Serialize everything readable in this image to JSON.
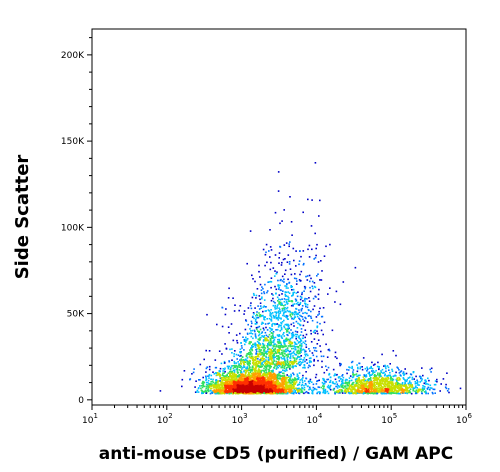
{
  "chart_data": {
    "type": "scatter",
    "subtype": "flow-cytometry-density-dot-plot",
    "xlabel": "anti-mouse CD5 (purified) / GAM APC",
    "ylabel": "Side Scatter",
    "x_scale": "log",
    "y_scale": "linear",
    "xlim": [
      10,
      1000000
    ],
    "ylim": [
      -3000,
      215000
    ],
    "x_ticks": [
      {
        "value": 10,
        "base": "10",
        "exp": "1"
      },
      {
        "value": 100,
        "base": "10",
        "exp": "2"
      },
      {
        "value": 1000,
        "base": "10",
        "exp": "3"
      },
      {
        "value": 10000,
        "base": "10",
        "exp": "4"
      },
      {
        "value": 100000,
        "base": "10",
        "exp": "5"
      },
      {
        "value": 1000000,
        "base": "10",
        "exp": "6"
      }
    ],
    "y_ticks": [
      {
        "value": 0,
        "label": "0"
      },
      {
        "value": 50000,
        "label": "50K"
      },
      {
        "value": 100000,
        "label": "100K"
      },
      {
        "value": 150000,
        "label": "150K"
      },
      {
        "value": 200000,
        "label": "200K"
      }
    ],
    "populations": [
      {
        "center_x": 1400,
        "center_ssc": 6000,
        "spread_log": 0.28,
        "spread_ssc": 5000,
        "weight": 0.55
      },
      {
        "center_x": 2800,
        "center_ssc": 25000,
        "spread_log": 0.3,
        "spread_ssc": 15000,
        "weight": 0.18
      },
      {
        "center_x": 4500,
        "center_ssc": 55000,
        "spread_log": 0.25,
        "spread_ssc": 20000,
        "weight": 0.05
      },
      {
        "center_x": 60000,
        "center_ssc": 6000,
        "spread_log": 0.35,
        "spread_ssc": 5000,
        "weight": 0.22
      }
    ],
    "density_colors": [
      "#0000c8",
      "#0070ff",
      "#00c0ff",
      "#30e060",
      "#c8e000",
      "#ffa000",
      "#ff3000",
      "#c80000"
    ],
    "grid": false
  }
}
